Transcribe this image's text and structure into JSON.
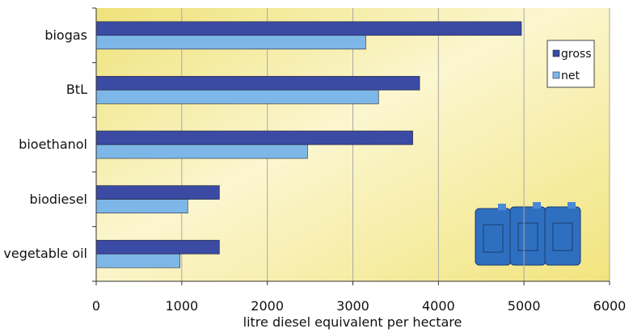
{
  "chart_data": {
    "type": "hbar",
    "x_label": "litre diesel equivalent per hectare",
    "categories": [
      "biogas",
      "BtL",
      "bioethanol",
      "biodiesel",
      "vegetable oil"
    ],
    "series": [
      {
        "name": "gross",
        "color": "#3b4ba3",
        "values": [
          4970,
          3780,
          3700,
          1440,
          1440
        ]
      },
      {
        "name": "net",
        "color": "#7db7e8",
        "values": [
          3150,
          3300,
          2470,
          1070,
          980
        ]
      }
    ],
    "xlim": [
      0,
      6000
    ],
    "xticks": [
      0,
      1000,
      2000,
      3000,
      4000,
      5000,
      6000
    ],
    "grid": true
  }
}
